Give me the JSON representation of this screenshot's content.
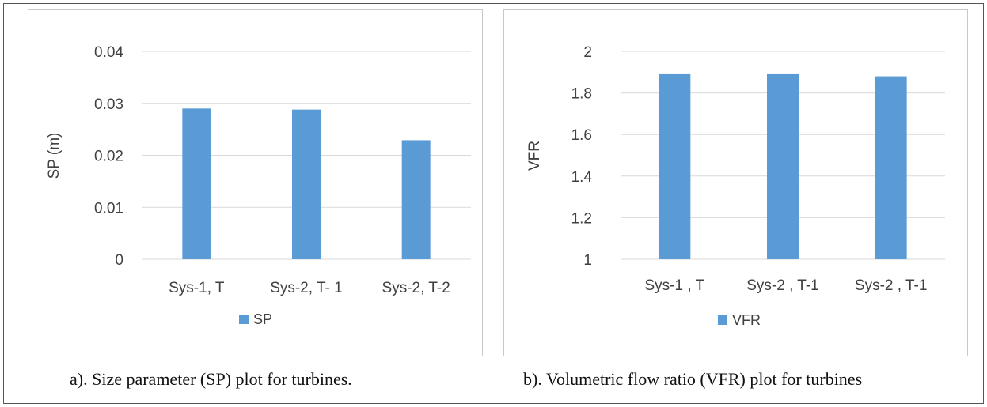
{
  "chart_data": [
    {
      "type": "bar",
      "title": "",
      "xlabel": "",
      "ylabel": "SP (m)",
      "ylim": [
        0,
        0.04
      ],
      "yticks": [
        0,
        0.01,
        0.02,
        0.03,
        0.04
      ],
      "ytick_labels": [
        "0",
        "0.01",
        "0.02",
        "0.03",
        "0.04"
      ],
      "categories": [
        "Sys-1, T",
        "Sys-2, T- 1",
        "Sys-2, T-2"
      ],
      "series": [
        {
          "name": "SP",
          "values": [
            0.029,
            0.0288,
            0.0229
          ]
        }
      ],
      "color": "#5b9bd5",
      "grid": true,
      "legend": "bottom-center"
    },
    {
      "type": "bar",
      "title": "",
      "xlabel": "",
      "ylabel": "VFR",
      "ylim": [
        1,
        2
      ],
      "yticks": [
        1,
        1.2,
        1.4,
        1.6,
        1.8,
        2
      ],
      "ytick_labels": [
        "1",
        "1.2",
        "1.4",
        "1.6",
        "1.8",
        "2"
      ],
      "categories": [
        "Sys-1 , T",
        "Sys-2 , T-1",
        "Sys-2 , T-1"
      ],
      "series": [
        {
          "name": "VFR",
          "values": [
            1.89,
            1.89,
            1.88
          ]
        }
      ],
      "color": "#5b9bd5",
      "grid": true,
      "legend": "bottom-center"
    }
  ],
  "captions": {
    "a": "a). Size parameter (SP) plot for turbines.",
    "b": "b). Volumetric flow ratio (VFR) plot for turbines"
  }
}
